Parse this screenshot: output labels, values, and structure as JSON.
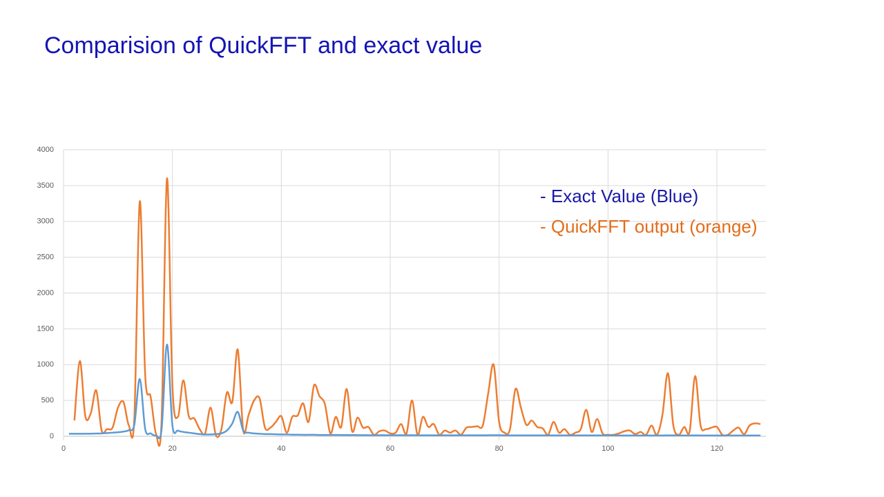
{
  "chart_data": {
    "type": "line",
    "title": "Comparision of QuickFFT and exact value",
    "x": [
      1,
      2,
      3,
      4,
      5,
      6,
      7,
      8,
      9,
      10,
      11,
      12,
      13,
      14,
      15,
      16,
      17,
      18,
      19,
      20,
      21,
      22,
      23,
      24,
      25,
      26,
      27,
      28,
      29,
      30,
      31,
      32,
      33,
      34,
      35,
      36,
      37,
      38,
      39,
      40,
      41,
      42,
      43,
      44,
      45,
      46,
      47,
      48,
      49,
      50,
      51,
      52,
      53,
      54,
      55,
      56,
      57,
      58,
      59,
      60,
      61,
      62,
      63,
      64,
      65,
      66,
      67,
      68,
      69,
      70,
      71,
      72,
      73,
      74,
      75,
      76,
      77,
      78,
      79,
      80,
      81,
      82,
      83,
      84,
      85,
      86,
      87,
      88,
      89,
      90,
      91,
      92,
      93,
      94,
      95,
      96,
      97,
      98,
      99,
      100,
      101,
      102,
      103,
      104,
      105,
      106,
      107,
      108,
      109,
      110,
      111,
      112,
      113,
      114,
      115,
      116,
      117,
      118,
      119,
      120,
      121,
      122,
      123,
      124,
      125,
      126,
      127,
      128
    ],
    "series": [
      {
        "name": "- Exact Value (Blue)",
        "color": "#5b9bd5",
        "legend_color": "#1a1aa6",
        "values": [
          35,
          35,
          35,
          35,
          36,
          38,
          40,
          45,
          50,
          55,
          65,
          85,
          160,
          800,
          100,
          40,
          10,
          90,
          1280,
          150,
          80,
          60,
          50,
          40,
          30,
          25,
          25,
          30,
          40,
          80,
          180,
          340,
          80,
          50,
          40,
          35,
          30,
          30,
          28,
          25,
          25,
          22,
          22,
          20,
          20,
          20,
          18,
          18,
          18,
          18,
          17,
          17,
          17,
          16,
          16,
          15,
          15,
          15,
          15,
          14,
          14,
          14,
          14,
          14,
          14,
          13,
          13,
          13,
          13,
          13,
          13,
          13,
          13,
          13,
          13,
          13,
          13,
          14,
          15,
          14,
          13,
          12,
          12,
          12,
          12,
          12,
          12,
          12,
          12,
          12,
          12,
          12,
          12,
          12,
          12,
          12,
          12,
          12,
          12,
          12,
          11,
          11,
          11,
          11,
          11,
          11,
          11,
          11,
          11,
          11,
          12,
          12,
          11,
          11,
          11,
          12,
          11,
          11,
          11,
          11,
          11,
          11,
          11,
          11,
          11,
          11,
          11,
          11
        ]
      },
      {
        "name": "- QuickFFT output (orange)",
        "color": "#ed7d31",
        "legend_color": "#e36c1a",
        "values": [
          null,
          220,
          1050,
          280,
          320,
          640,
          80,
          100,
          120,
          400,
          480,
          150,
          250,
          3280,
          850,
          550,
          30,
          200,
          3600,
          700,
          270,
          780,
          280,
          250,
          100,
          40,
          400,
          10,
          100,
          610,
          480,
          1210,
          80,
          300,
          500,
          530,
          120,
          120,
          200,
          280,
          50,
          270,
          290,
          460,
          200,
          710,
          560,
          450,
          40,
          270,
          130,
          660,
          70,
          260,
          120,
          130,
          20,
          70,
          80,
          40,
          50,
          170,
          40,
          500,
          20,
          270,
          130,
          170,
          20,
          80,
          50,
          80,
          20,
          120,
          130,
          140,
          150,
          600,
          1000,
          200,
          50,
          100,
          660,
          400,
          160,
          220,
          130,
          110,
          20,
          200,
          50,
          100,
          20,
          50,
          100,
          370,
          60,
          240,
          40,
          20,
          20,
          40,
          70,
          80,
          30,
          60,
          20,
          150,
          20,
          300,
          880,
          150,
          20,
          130,
          70,
          840,
          150,
          100,
          120,
          130,
          20,
          20,
          80,
          120,
          30,
          150,
          180,
          170
        ]
      }
    ],
    "xlim": [
      0,
      129
    ],
    "xticks": [
      0,
      20,
      40,
      60,
      80,
      100,
      120
    ],
    "ylim": [
      0,
      4000
    ],
    "yticks": [
      0,
      500,
      1000,
      1500,
      2000,
      2500,
      3000,
      3500,
      4000
    ],
    "grid": true
  }
}
